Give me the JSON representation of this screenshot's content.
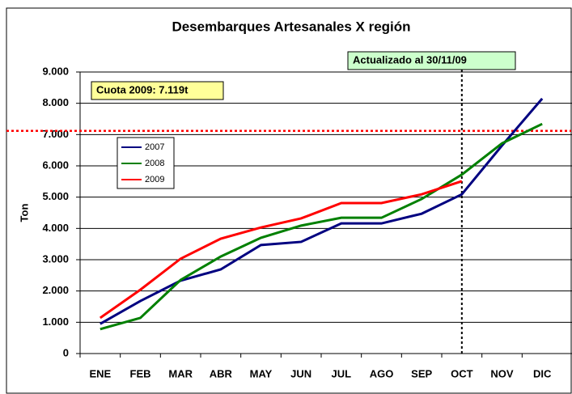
{
  "chart_data": {
    "type": "line",
    "title": "Desembarques Artesanales X región",
    "y_label": "Ton",
    "categories": [
      "ENE",
      "FEB",
      "MAR",
      "ABR",
      "MAY",
      "JUN",
      "JUL",
      "AGO",
      "SEP",
      "OCT",
      "NOV",
      "DIC"
    ],
    "series": [
      {
        "name": "2007",
        "color": "#000080",
        "values": [
          950,
          1680,
          2330,
          2690,
          3470,
          3570,
          4160,
          4160,
          4470,
          5090,
          6650,
          8150
        ]
      },
      {
        "name": "2008",
        "color": "#008000",
        "values": [
          780,
          1140,
          2350,
          3100,
          3700,
          4090,
          4340,
          4340,
          4940,
          5720,
          6720,
          7340
        ]
      },
      {
        "name": "2009",
        "color": "#ff0000",
        "values": [
          1140,
          2040,
          3030,
          3670,
          4030,
          4320,
          4810,
          4810,
          5090,
          5510,
          null,
          null
        ]
      }
    ],
    "ylim": [
      0,
      9000
    ],
    "yticks": [
      0,
      {
        "value": 1000,
        "label": "1.000"
      },
      {
        "value": 2000,
        "label": "2.000"
      },
      {
        "value": 3000,
        "label": "3.000"
      },
      {
        "value": 4000,
        "label": "4.000"
      },
      {
        "value": 5000,
        "label": "5.000"
      },
      {
        "value": 6000,
        "label": "6.000"
      },
      {
        "value": 7000,
        "label": "7.000"
      },
      {
        "value": 8000,
        "label": "8.000"
      },
      {
        "value": 9000,
        "label": "9.000"
      }
    ],
    "grid": true,
    "quota": {
      "value": 7119,
      "label": "Cuota 2009: 7.119t",
      "color": "#ff0000"
    },
    "update": {
      "category": 9,
      "label": "Actualizado al 30/11/09"
    }
  }
}
